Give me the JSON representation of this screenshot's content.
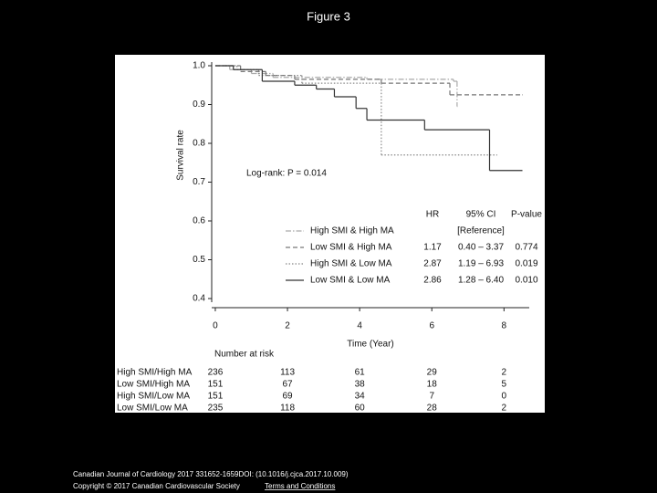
{
  "page_title": "Figure 3",
  "chart_data": {
    "type": "step",
    "y_label": "Survival rate",
    "x_label": "Time (Year)",
    "annotation": "Log-rank: P = 0.014",
    "xlim": [
      -0.1,
      8.7
    ],
    "xticks": [
      0,
      2,
      4,
      6,
      8
    ],
    "ylim": [
      0.4,
      1.0
    ],
    "yticks": [
      0.4,
      0.5,
      0.6,
      0.7,
      0.8,
      0.9,
      {
        "value": 1,
        "label": "1.0"
      }
    ],
    "series": [
      {
        "name": "High SMI & High MA",
        "color": "#aaaaaa",
        "style": "dashdot",
        "x": [
          0,
          0.4,
          1.0,
          1.6,
          4.2,
          6.6,
          6.7
        ],
        "values": [
          1,
          0.99,
          0.98,
          0.97,
          0.965,
          0.96,
          0.895
        ]
      },
      {
        "name": "Low SMI & High MA",
        "color": "#777777",
        "style": "dashed",
        "x": [
          0,
          0.7,
          1.4,
          2.2,
          4.6,
          6.5,
          8.5
        ],
        "values": [
          1,
          0.985,
          0.975,
          0.965,
          0.955,
          0.925,
          0.925
        ]
      },
      {
        "name": "High SMI & Low MA",
        "color": "#888888",
        "style": "dotted",
        "x": [
          0,
          0.6,
          1.2,
          2.4,
          4.6,
          7.8
        ],
        "values": [
          1,
          0.99,
          0.975,
          0.955,
          0.77,
          0.77
        ]
      },
      {
        "name": "Low SMI & Low MA",
        "color": "#333333",
        "style": "solid",
        "x": [
          0,
          0.5,
          1.3,
          2.2,
          2.8,
          3.3,
          3.9,
          4.2,
          5.8,
          7.6,
          8.5
        ],
        "values": [
          1,
          0.99,
          0.96,
          0.95,
          0.94,
          0.92,
          0.89,
          0.86,
          0.835,
          0.73,
          0.73
        ]
      }
    ],
    "hr_table": {
      "headers": [
        "HR",
        "95% CI",
        "P-value"
      ],
      "rows": [
        [
          "[Reference]"
        ],
        [
          "1.17",
          "0.40 – 3.37",
          "0.774"
        ],
        [
          "2.87",
          "1.19 – 6.93",
          "0.019"
        ],
        [
          "2.86",
          "1.28 – 6.40",
          "0.010"
        ]
      ]
    },
    "risk_table": {
      "title": "Number at risk",
      "rows": [
        {
          "label": "High SMI/High MA",
          "counts": [
            236,
            113,
            61,
            29,
            2
          ]
        },
        {
          "label": "Low SMI/High MA",
          "counts": [
            151,
            67,
            38,
            18,
            5
          ]
        },
        {
          "label": "High SMI/Low MA",
          "counts": [
            151,
            69,
            34,
            7,
            0
          ]
        },
        {
          "label": "Low SMI/Low MA",
          "counts": [
            235,
            118,
            60,
            28,
            2
          ]
        }
      ]
    }
  },
  "footer": {
    "citation": "Canadian Journal of Cardiology 2017 331652-1659DOI: (10.1016/j.cjca.2017.10.009)",
    "copyright": "Copyright © 2017 Canadian Cardiovascular Society",
    "link": "Terms and Conditions"
  }
}
